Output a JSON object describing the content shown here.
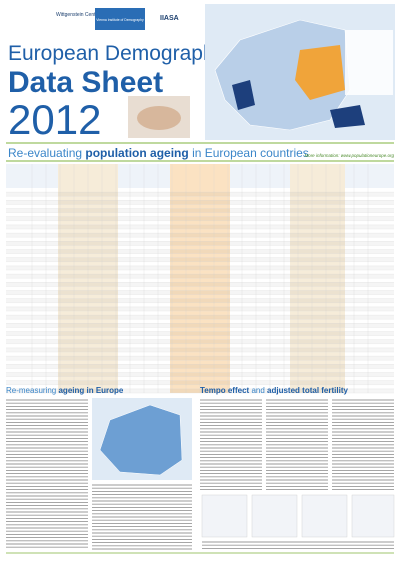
{
  "header": {
    "logos": [
      "Wittgenstein Centre",
      "Vienna Institute of Demography",
      "IIASA"
    ],
    "title_line1": "European Demographic",
    "title_line2": "Data Sheet",
    "year": "2012"
  },
  "banner": {
    "title_prefix": "Re-evaluating",
    "title_emphasis": "population ageing",
    "title_suffix": "in European countries",
    "more_info": "More information: www.populationeurope.org"
  },
  "sections": [
    {
      "title_prefix": "Re-measuring",
      "title_emphasis": "ageing in Europe"
    },
    {
      "title_prefix": "Tempo effect",
      "title_middle": "and",
      "title_emphasis": "adjusted total fertility"
    }
  ]
}
